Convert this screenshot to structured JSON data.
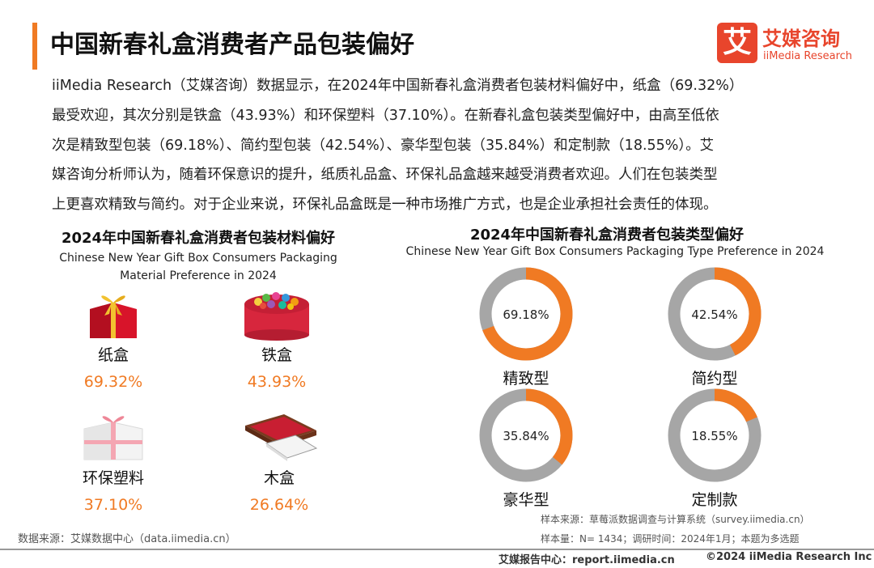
{
  "header": {
    "title": "中国新春礼盒消费者产品包装偏好",
    "logo_mark": "艾",
    "logo_cn": "艾媒咨询",
    "logo_en": "iiMedia Research"
  },
  "intro_lines": [
    "iiMedia Research（艾媒咨询）数据显示，在2024年中国新春礼盒消费者包装材料偏好中，纸盒（69.32%）",
    "最受欢迎，其次分别是铁盒（43.93%）和环保塑料（37.10%）。在新春礼盒包装类型偏好中，由高至低依",
    "次是精致型包装（69.18%）、简约型包装（42.54%）、豪华型包装（35.84%）和定制款（18.55%）。艾",
    "媒咨询分析师认为，随着环保意识的提升，纸质礼品盒、环保礼品盒越来越受消费者欢迎。人们在包装类型",
    "上更喜欢精致与简约。对于企业来说，环保礼品盒既是一种市场推广方式，也是企业承担社会责任的体现。"
  ],
  "chart_data": [
    {
      "type": "table",
      "title": "2024年中国新春礼盒消费者包装材料偏好",
      "subtitle_lines": [
        "Chinese New Year Gift Box Consumers Packaging",
        "Material Preference in 2024"
      ],
      "categories": [
        "纸盒",
        "铁盒",
        "环保塑料",
        "木盒"
      ],
      "values": [
        69.32,
        43.93,
        37.1,
        26.64
      ],
      "labels": [
        "69.32%",
        "43.93%",
        "37.10%",
        "26.64%"
      ]
    },
    {
      "type": "pie",
      "title": "2024年中国新春礼盒消费者包装类型偏好",
      "subtitle": "Chinese New Year Gift Box Consumers Packaging Type Preference in 2024",
      "categories": [
        "精致型",
        "简约型",
        "豪华型",
        "定制款"
      ],
      "values": [
        69.18,
        42.54,
        35.84,
        18.55
      ],
      "labels": [
        "69.18%",
        "42.54%",
        "35.84%",
        "18.55%"
      ]
    }
  ],
  "icons": [
    "paper-gift-box-icon",
    "tin-candy-box-icon",
    "plastic-ribbon-box-icon",
    "wooden-box-icon"
  ],
  "colors": {
    "accent": "#f07a23",
    "track": "#a6a6a6",
    "brand": "#e8452c"
  },
  "notes": {
    "sample_source": "样本来源：草莓派数据调查与计算系统（survey.iimedia.cn）",
    "sample_info": "样本量：N= 1434；调研时间：2024年1月；本题为多选题"
  },
  "data_source": "数据来源：艾媒数据中心（data.iimedia.cn）",
  "footer": {
    "report_center": "艾媒报告中心：report.iimedia.cn",
    "copyright": "©2024  iiMedia Research  Inc"
  }
}
